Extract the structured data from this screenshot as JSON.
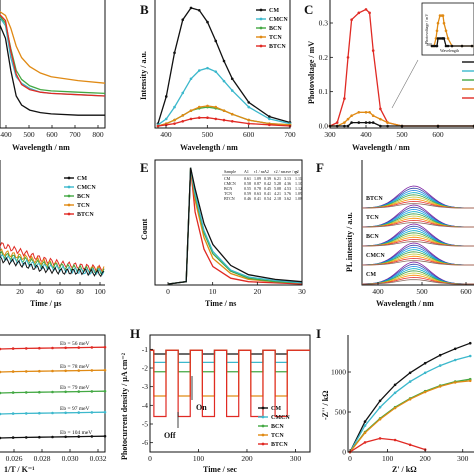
{
  "colors": {
    "CM": "#111111",
    "CMCN": "#3cb8cc",
    "BCN": "#43a843",
    "TCN": "#e08a14",
    "BTCN": "#e02a24"
  },
  "legend_labels": [
    "CM",
    "CMCN",
    "BCN",
    "TCN",
    "BTCN"
  ],
  "panels": {
    "A": {
      "xlabel": "Wavelength / nm",
      "ticks": [
        "400",
        "500",
        "600",
        "700",
        "800"
      ]
    },
    "B": {
      "label": "B",
      "xlabel": "Wavelength / nm",
      "ylabel": "Intensity / a.u.",
      "ticks": [
        "400",
        "500",
        "600",
        "700"
      ]
    },
    "C": {
      "label": "C",
      "xlabel": "Wavelength / nm",
      "ylabel": "Photovoltage / mV",
      "xticks": [
        "300",
        "400",
        "500",
        "600"
      ],
      "yticks": [
        "0.0",
        "0.1",
        "0.2",
        "0.3"
      ],
      "inset_ylabel": "Photovoltage / mV",
      "inset_xlabel": "Wavelength",
      "inset_tick": "300"
    },
    "D": {
      "xlabel": "Time / μs",
      "ticks": [
        "20",
        "40",
        "60",
        "80",
        "100"
      ]
    },
    "E": {
      "label": "E",
      "xlabel": "Time / ns",
      "ylabel": "Count",
      "ticks": [
        "0",
        "10",
        "20",
        "30"
      ],
      "table": {
        "header": [
          "Sample",
          "A1",
          "τ1 / ns",
          "A2",
          "τ2 / ns",
          "τave / ns",
          "χ2"
        ],
        "rows": [
          [
            "CM",
            "0.61",
            "1.09",
            "0.39",
            "6.21",
            "3.13",
            "1.11"
          ],
          [
            "CMCN",
            "0.58",
            "0.87",
            "0.42",
            "5.28",
            "4.36",
            "1.10"
          ],
          [
            "BCN",
            "0.55",
            "0.78",
            "0.45",
            "5.08",
            "4.53",
            "1.12"
          ],
          [
            "TCN",
            "0.59",
            "0.63",
            "0.41",
            "4.21",
            "3.76",
            "1.09"
          ],
          [
            "BTCN",
            "0.46",
            "0.41",
            "0.54",
            "2.18",
            "3.62",
            "1.08"
          ]
        ]
      }
    },
    "F": {
      "label": "F",
      "xlabel": "Wavelength / nm",
      "ylabel": "PL intensity / a.u.",
      "ticks": [
        "400",
        "500",
        "600"
      ],
      "samples": [
        "BTCN",
        "TCN",
        "BCN",
        "CMCN",
        "CM"
      ]
    },
    "G": {
      "xlabel": "1/T / K⁻¹",
      "ticks": [
        "0.026",
        "0.028",
        "0.030",
        "0.032"
      ],
      "energies": [
        "Eb = 56 meV",
        "Eb = 78 meV",
        "Eb = 79 meV",
        "Eb = 97 meV",
        "Eb = 104 meV"
      ]
    },
    "H": {
      "label": "H",
      "xlabel": "Time / sec",
      "ylabel": "Photocurrent density / μA cm⁻²",
      "xticks": [
        "0",
        "100",
        "200",
        "300"
      ],
      "yticks": [
        "-1",
        "-2",
        "-3",
        "-4",
        "-5",
        "-6"
      ],
      "off_label": "Off",
      "on_label": "On"
    },
    "I": {
      "label": "I",
      "xlabel": "Z' / kΩ",
      "ylabel": "-Z'' / kΩ",
      "xticks": [
        "0",
        "100",
        "200",
        "300"
      ],
      "yticks": [
        "0",
        "500",
        "1000"
      ]
    }
  },
  "chart_data": [
    {
      "panel": "A",
      "type": "line",
      "title": "",
      "xlabel": "Wavelength / nm",
      "ylabel": "",
      "x": [
        380,
        430,
        450,
        470,
        490,
        520,
        560,
        600,
        700,
        800
      ],
      "series": [
        {
          "name": "CM",
          "values": [
            0.95,
            0.7,
            0.45,
            0.25,
            0.18,
            0.14,
            0.12,
            0.11,
            0.1,
            0.1
          ]
        },
        {
          "name": "CMCN",
          "values": [
            0.95,
            0.8,
            0.55,
            0.4,
            0.35,
            0.31,
            0.28,
            0.27,
            0.26,
            0.25
          ]
        },
        {
          "name": "BCN",
          "values": [
            0.95,
            0.82,
            0.62,
            0.45,
            0.38,
            0.33,
            0.3,
            0.29,
            0.28,
            0.27
          ]
        },
        {
          "name": "TCN",
          "values": [
            0.95,
            0.88,
            0.78,
            0.64,
            0.55,
            0.48,
            0.43,
            0.4,
            0.37,
            0.35
          ]
        },
        {
          "name": "BTCN",
          "values": [
            0.95,
            0.84,
            0.6,
            0.42,
            0.34,
            0.3,
            0.28,
            0.27,
            0.26,
            0.25
          ]
        }
      ]
    },
    {
      "panel": "B",
      "type": "line",
      "title": "",
      "xlabel": "Wavelength / nm",
      "ylabel": "Intensity / a.u.",
      "x": [
        380,
        400,
        420,
        440,
        460,
        480,
        500,
        520,
        540,
        560,
        600,
        650,
        700
      ],
      "series": [
        {
          "name": "CM",
          "values": [
            0.02,
            0.25,
            0.62,
            0.9,
            1.0,
            0.98,
            0.88,
            0.72,
            0.55,
            0.4,
            0.2,
            0.08,
            0.03
          ]
        },
        {
          "name": "CMCN",
          "values": [
            0.01,
            0.06,
            0.16,
            0.28,
            0.4,
            0.47,
            0.49,
            0.46,
            0.38,
            0.3,
            0.16,
            0.06,
            0.02
          ]
        },
        {
          "name": "BCN",
          "values": [
            0.0,
            0.02,
            0.05,
            0.09,
            0.13,
            0.15,
            0.16,
            0.15,
            0.13,
            0.1,
            0.05,
            0.02,
            0.01
          ]
        },
        {
          "name": "TCN",
          "values": [
            0.0,
            0.02,
            0.05,
            0.09,
            0.13,
            0.16,
            0.17,
            0.16,
            0.13,
            0.1,
            0.05,
            0.02,
            0.01
          ]
        },
        {
          "name": "BTCN",
          "values": [
            0.0,
            0.01,
            0.02,
            0.04,
            0.06,
            0.07,
            0.07,
            0.06,
            0.05,
            0.04,
            0.02,
            0.01,
            0.0
          ]
        }
      ]
    },
    {
      "panel": "C",
      "type": "line",
      "title": "",
      "xlabel": "Wavelength / nm",
      "ylabel": "Photovoltage / mV",
      "x": [
        300,
        320,
        340,
        350,
        360,
        380,
        400,
        410,
        420,
        440,
        460,
        500,
        600,
        700
      ],
      "series": [
        {
          "name": "BTCN",
          "values": [
            0.0,
            0.01,
            0.08,
            0.2,
            0.31,
            0.33,
            0.34,
            0.33,
            0.22,
            0.05,
            0.01,
            0.0,
            0.0,
            0.0
          ]
        },
        {
          "name": "TCN",
          "values": [
            0.0,
            0.0,
            0.01,
            0.02,
            0.03,
            0.04,
            0.04,
            0.04,
            0.03,
            0.02,
            0.01,
            0.0,
            0.0,
            0.0
          ]
        },
        {
          "name": "CM",
          "values": [
            0.0,
            0.0,
            0.0,
            0.0,
            0.01,
            0.01,
            0.01,
            0.01,
            0.01,
            0.0,
            0.0,
            0.0,
            0.0,
            0.0
          ]
        }
      ]
    },
    {
      "panel": "D",
      "type": "line",
      "title": "",
      "xlabel": "Time / μs",
      "ylabel": "",
      "x": [
        0,
        20,
        40,
        60,
        80,
        100
      ],
      "series": [
        {
          "name": "CM",
          "values": [
            0.1,
            0.08,
            0.06,
            0.05,
            0.05,
            0.04
          ]
        },
        {
          "name": "CMCN",
          "values": [
            0.11,
            0.09,
            0.07,
            0.06,
            0.05,
            0.05
          ]
        },
        {
          "name": "BCN",
          "values": [
            0.12,
            0.1,
            0.08,
            0.07,
            0.06,
            0.05
          ]
        },
        {
          "name": "TCN",
          "values": [
            0.13,
            0.11,
            0.09,
            0.07,
            0.06,
            0.06
          ]
        },
        {
          "name": "BTCN",
          "values": [
            0.16,
            0.13,
            0.1,
            0.08,
            0.07,
            0.06
          ]
        }
      ]
    },
    {
      "panel": "E",
      "type": "line",
      "title": "",
      "xlabel": "Time / ns",
      "ylabel": "Count",
      "x": [
        0,
        4,
        5,
        6,
        8,
        10,
        14,
        18,
        24,
        30
      ],
      "series": [
        {
          "name": "CM",
          "values": [
            0.0,
            0.02,
            1.0,
            0.82,
            0.52,
            0.34,
            0.16,
            0.08,
            0.04,
            0.02
          ]
        },
        {
          "name": "CMCN",
          "values": [
            0.0,
            0.02,
            1.0,
            0.78,
            0.46,
            0.28,
            0.12,
            0.06,
            0.03,
            0.01
          ]
        },
        {
          "name": "BCN",
          "values": [
            0.0,
            0.02,
            1.0,
            0.76,
            0.44,
            0.26,
            0.11,
            0.05,
            0.02,
            0.01
          ]
        },
        {
          "name": "TCN",
          "values": [
            0.0,
            0.02,
            1.0,
            0.72,
            0.4,
            0.22,
            0.09,
            0.04,
            0.02,
            0.01
          ]
        },
        {
          "name": "BTCN",
          "values": [
            0.0,
            0.02,
            1.0,
            0.62,
            0.3,
            0.15,
            0.05,
            0.02,
            0.01,
            0.0
          ]
        }
      ]
    },
    {
      "panel": "G",
      "type": "scatter",
      "title": "",
      "xlabel": "1/T / K⁻¹",
      "ylabel": "",
      "x": [
        0.025,
        0.026,
        0.027,
        0.028,
        0.029,
        0.03,
        0.031,
        0.032,
        0.033
      ],
      "series": [
        {
          "name": "BTCN",
          "values": [
            4.95,
            4.97,
            4.98,
            4.99,
            5.0,
            5.01,
            5.02,
            5.03,
            5.04
          ]
        },
        {
          "name": "TCN",
          "values": [
            3.95,
            3.97,
            3.98,
            3.99,
            4.0,
            4.01,
            4.02,
            4.03,
            4.04
          ]
        },
        {
          "name": "BCN",
          "values": [
            2.95,
            2.97,
            2.98,
            2.99,
            3.0,
            3.01,
            3.02,
            3.03,
            3.04
          ]
        },
        {
          "name": "CMCN",
          "values": [
            1.95,
            1.97,
            1.98,
            1.99,
            2.0,
            2.01,
            2.02,
            2.03,
            2.04
          ]
        },
        {
          "name": "CM",
          "values": [
            0.95,
            0.97,
            0.98,
            0.99,
            1.0,
            1.01,
            1.02,
            1.03,
            1.04
          ]
        }
      ]
    },
    {
      "panel": "H",
      "type": "line",
      "title": "",
      "xlabel": "Time / sec",
      "ylabel": "Photocurrent density / μA cm⁻²",
      "ylim": [
        -6.5,
        -0.5
      ],
      "x_range": [
        0,
        330
      ],
      "cycle_sec": 50,
      "cycles": 6,
      "series": [
        {
          "name": "CM",
          "on": -1.25,
          "off": -1.05
        },
        {
          "name": "CMCN",
          "on": -1.7,
          "off": -1.05
        },
        {
          "name": "BCN",
          "on": -2.2,
          "off": -1.05
        },
        {
          "name": "TCN",
          "on": -3.5,
          "off": -1.05
        },
        {
          "name": "BTCN",
          "on": -4.6,
          "off": -1.05
        }
      ]
    },
    {
      "panel": "I",
      "type": "scatter",
      "title": "",
      "xlabel": "Z' / kΩ",
      "ylabel": "-Z'' / kΩ",
      "x": [
        0,
        40,
        80,
        120,
        160,
        200,
        240,
        280,
        320
      ],
      "series": [
        {
          "name": "CM",
          "values": [
            0,
            380,
            640,
            840,
            990,
            1110,
            1210,
            1290,
            1360
          ]
        },
        {
          "name": "CMCN",
          "values": [
            0,
            330,
            560,
            740,
            880,
            990,
            1080,
            1150,
            1200
          ]
        },
        {
          "name": "BCN",
          "values": [
            0,
            250,
            420,
            560,
            670,
            760,
            830,
            880,
            910
          ]
        },
        {
          "name": "TCN",
          "values": [
            0,
            240,
            410,
            550,
            660,
            750,
            820,
            870,
            890
          ]
        },
        {
          "name": "BTCN",
          "values": [
            0,
            120,
            170,
            150,
            90,
            30,
            null,
            null,
            null
          ]
        }
      ]
    }
  ]
}
